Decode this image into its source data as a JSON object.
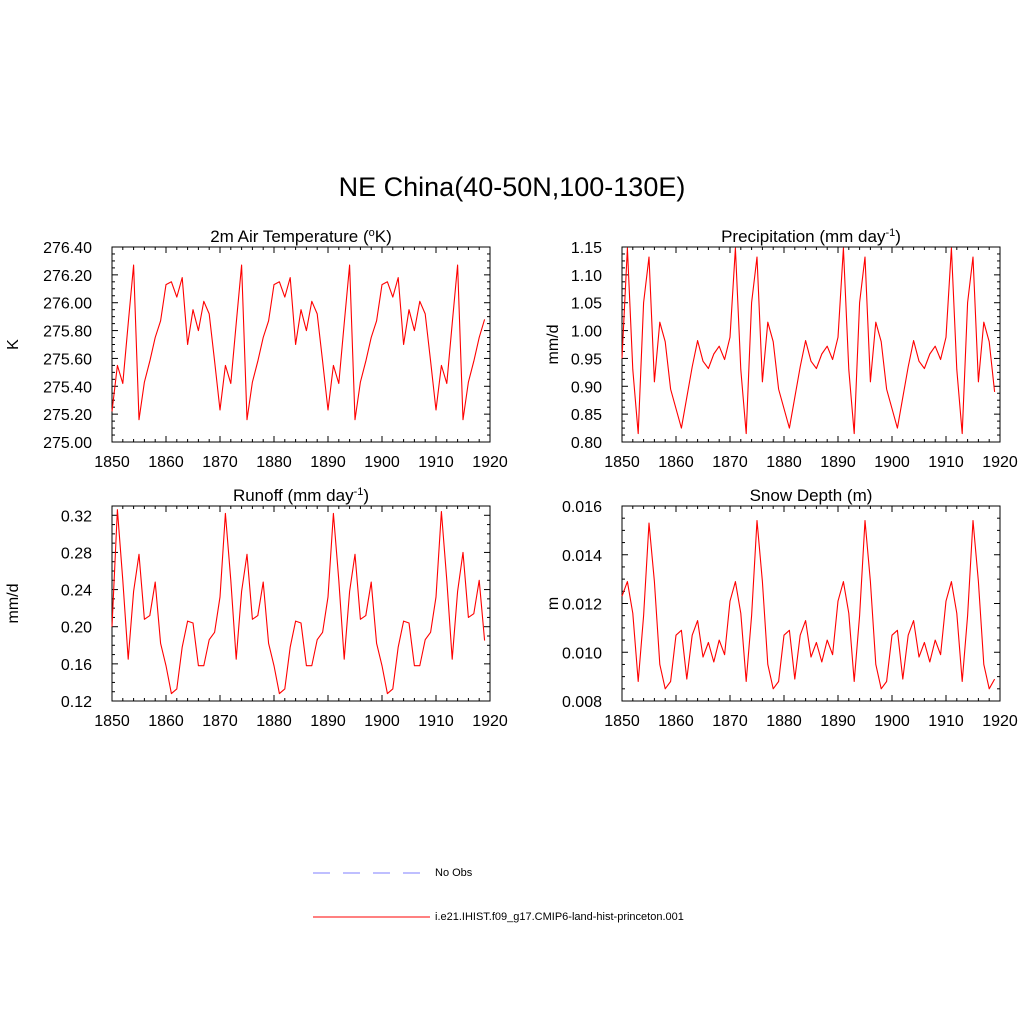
{
  "figure": {
    "title": "NE China(40-50N,100-130E)",
    "series_color": "#ff0000",
    "noobs_color": "#9999ff"
  },
  "legend": {
    "noobs_label": "No Obs",
    "model_label": "i.e21.IHIST.f09_g17.CMIP6-land-hist-princeton.001"
  },
  "chart_data": [
    {
      "type": "line",
      "title": "2m Air Temperature (",
      "title_sup": "o",
      "title_post": "K)",
      "ylabel": "K",
      "xlim": [
        1850,
        1920
      ],
      "xticks": [
        "1850",
        "1860",
        "1870",
        "1880",
        "1890",
        "1900",
        "1910",
        "1920"
      ],
      "ylim": [
        275.0,
        276.4
      ],
      "yticks": [
        "276.40",
        "276.20",
        "276.00",
        "275.80",
        "275.60",
        "275.40",
        "275.20",
        "275.00"
      ],
      "x_start": 1850,
      "values": [
        275.22,
        275.55,
        275.42,
        275.85,
        276.27,
        275.16,
        275.43,
        275.58,
        275.75,
        275.87,
        276.13,
        276.15,
        276.04,
        276.18,
        275.7,
        275.95,
        275.8,
        276.01,
        275.92,
        275.58,
        275.23,
        275.55,
        275.42,
        275.85,
        276.27,
        275.16,
        275.43,
        275.58,
        275.75,
        275.87,
        276.13,
        276.15,
        276.04,
        276.18,
        275.7,
        275.95,
        275.8,
        276.01,
        275.92,
        275.58,
        275.23,
        275.55,
        275.42,
        275.85,
        276.27,
        275.16,
        275.43,
        275.58,
        275.75,
        275.87,
        276.13,
        276.15,
        276.04,
        276.18,
        275.7,
        275.95,
        275.8,
        276.01,
        275.92,
        275.58,
        275.23,
        275.55,
        275.42,
        275.85,
        276.27,
        275.16,
        275.43,
        275.58,
        275.75,
        275.88
      ]
    },
    {
      "type": "line",
      "title": "Precipitation (mm day",
      "title_sup": "-1",
      "title_post": ")",
      "ylabel": "mm/d",
      "xlim": [
        1850,
        1920
      ],
      "xticks": [
        "1850",
        "1860",
        "1870",
        "1880",
        "1890",
        "1900",
        "1910",
        "1920"
      ],
      "ylim": [
        0.8,
        1.15
      ],
      "yticks": [
        "1.15",
        "1.10",
        "1.05",
        "1.00",
        "0.95",
        "0.90",
        "0.85",
        "0.80"
      ],
      "x_start": 1850,
      "values": [
        0.95,
        1.148,
        0.93,
        0.815,
        1.05,
        1.132,
        0.908,
        1.015,
        0.98,
        0.895,
        0.86,
        0.825,
        0.88,
        0.935,
        0.982,
        0.945,
        0.932,
        0.958,
        0.972,
        0.948,
        0.988,
        1.148,
        0.93,
        0.815,
        1.05,
        1.132,
        0.908,
        1.015,
        0.98,
        0.895,
        0.86,
        0.825,
        0.88,
        0.935,
        0.982,
        0.945,
        0.932,
        0.958,
        0.972,
        0.948,
        0.988,
        1.148,
        0.93,
        0.815,
        1.05,
        1.132,
        0.908,
        1.015,
        0.98,
        0.895,
        0.86,
        0.825,
        0.88,
        0.935,
        0.982,
        0.945,
        0.932,
        0.958,
        0.972,
        0.948,
        0.988,
        1.148,
        0.93,
        0.815,
        1.05,
        1.132,
        0.908,
        1.015,
        0.98,
        0.89
      ]
    },
    {
      "type": "line",
      "title": "Runoff (mm day",
      "title_sup": "-1",
      "title_post": ")",
      "ylabel": "mm/d",
      "xlim": [
        1850,
        1920
      ],
      "xticks": [
        "1850",
        "1860",
        "1870",
        "1880",
        "1890",
        "1900",
        "1910",
        "1920"
      ],
      "ylim": [
        0.12,
        0.33
      ],
      "yticks": [
        "0.32",
        "0.28",
        "0.24",
        "0.20",
        "0.16",
        "0.12"
      ],
      "x_start": 1850,
      "values": [
        0.2,
        0.326,
        0.25,
        0.165,
        0.238,
        0.278,
        0.208,
        0.212,
        0.248,
        0.182,
        0.158,
        0.128,
        0.133,
        0.178,
        0.206,
        0.204,
        0.158,
        0.158,
        0.186,
        0.194,
        0.232,
        0.322,
        0.25,
        0.165,
        0.238,
        0.278,
        0.208,
        0.212,
        0.248,
        0.182,
        0.158,
        0.128,
        0.133,
        0.178,
        0.206,
        0.204,
        0.158,
        0.158,
        0.186,
        0.194,
        0.232,
        0.322,
        0.25,
        0.165,
        0.238,
        0.278,
        0.208,
        0.212,
        0.248,
        0.182,
        0.158,
        0.128,
        0.133,
        0.178,
        0.206,
        0.204,
        0.158,
        0.158,
        0.186,
        0.194,
        0.232,
        0.324,
        0.25,
        0.165,
        0.238,
        0.28,
        0.21,
        0.214,
        0.25,
        0.185
      ]
    },
    {
      "type": "line",
      "title": "Snow Depth (m)",
      "title_sup": "",
      "title_post": "",
      "ylabel": "m",
      "xlim": [
        1850,
        1920
      ],
      "xticks": [
        "1850",
        "1860",
        "1870",
        "1880",
        "1890",
        "1900",
        "1910",
        "1920"
      ],
      "ylim": [
        0.008,
        0.016
      ],
      "yticks": [
        "0.016",
        "0.014",
        "0.012",
        "0.010",
        "0.008"
      ],
      "x_start": 1850,
      "values": [
        0.0123,
        0.0129,
        0.0116,
        0.0088,
        0.0115,
        0.0153,
        0.0129,
        0.0095,
        0.0085,
        0.0088,
        0.0107,
        0.0109,
        0.0089,
        0.0107,
        0.0113,
        0.0098,
        0.0104,
        0.0096,
        0.0105,
        0.0099,
        0.0121,
        0.0129,
        0.0116,
        0.0088,
        0.0115,
        0.0154,
        0.0129,
        0.0095,
        0.0085,
        0.0088,
        0.0107,
        0.0109,
        0.0089,
        0.0107,
        0.0113,
        0.0098,
        0.0104,
        0.0096,
        0.0105,
        0.0099,
        0.0121,
        0.0129,
        0.0116,
        0.0088,
        0.0115,
        0.0154,
        0.0129,
        0.0095,
        0.0085,
        0.0088,
        0.0107,
        0.0109,
        0.0089,
        0.0107,
        0.0113,
        0.0098,
        0.0104,
        0.0096,
        0.0105,
        0.0099,
        0.0121,
        0.0129,
        0.0116,
        0.0088,
        0.0115,
        0.0154,
        0.0129,
        0.0095,
        0.0085,
        0.0089
      ]
    }
  ]
}
